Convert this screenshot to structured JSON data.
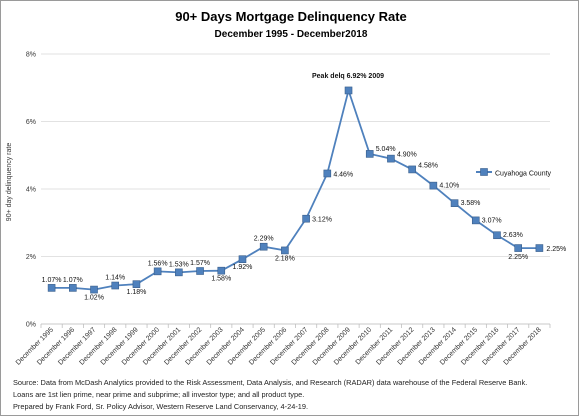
{
  "chart_data": {
    "type": "line",
    "title": "90+ Days Mortgage Delinquency Rate",
    "subtitle": "December 1995 - December2018",
    "xlabel": "",
    "ylabel": "90+ day delinquency rate",
    "ylim": [
      0,
      8
    ],
    "y_ticks": [
      "0%",
      "2%",
      "4%",
      "6%",
      "8%"
    ],
    "grid": true,
    "legend_position": "right",
    "categories": [
      "December 1995",
      "December 1996",
      "December 1997",
      "December 1998",
      "December 1999",
      "December 2000",
      "December 2001",
      "December 2002",
      "December 2003",
      "December 2004",
      "December 2005",
      "December 2006",
      "December 2007",
      "December 2008",
      "December 2009",
      "December 2010",
      "December 2011",
      "December 2012",
      "December 2013",
      "December 2014",
      "December 2015",
      "December 2016",
      "December 2017",
      "December 2018"
    ],
    "series": [
      {
        "name": "Cuyahoga County",
        "color": "#4f81bd",
        "values": [
          1.07,
          1.07,
          1.02,
          1.14,
          1.18,
          1.56,
          1.53,
          1.57,
          1.58,
          1.92,
          2.29,
          2.18,
          3.12,
          4.46,
          6.92,
          5.04,
          4.9,
          4.58,
          4.1,
          3.58,
          3.07,
          2.63,
          2.25,
          2.25
        ],
        "data_labels": [
          "1.07%",
          "1.07%",
          "1.02%",
          "1.14%",
          "1.18%",
          "1.56%",
          "1.53%",
          "1.57%",
          "1.58%",
          "1.92%",
          "2.29%",
          "2.18%",
          "3.12%",
          "4.46%",
          "",
          "5.04%",
          "4.90%",
          "4.58%",
          "4.10%",
          "3.58%",
          "3.07%",
          "2.63%",
          "2.25%",
          "2.25%"
        ]
      }
    ],
    "annotation": "Peak delq 6.92% 2009"
  },
  "footer": {
    "line1": "Source:  Data from McDash Analytics provided to the Risk Assessment, Data Analysis, and Research (RADAR) data warehouse of the Federal Reserve Bank.",
    "line2": "Loans are 1st lien prime, near prime and subprime;  all investor type;  and all product type.",
    "line3": "Prepared by Frank Ford, Sr. Policy Advisor,  Western Reserve Land Conservancy, 4-24-19."
  }
}
